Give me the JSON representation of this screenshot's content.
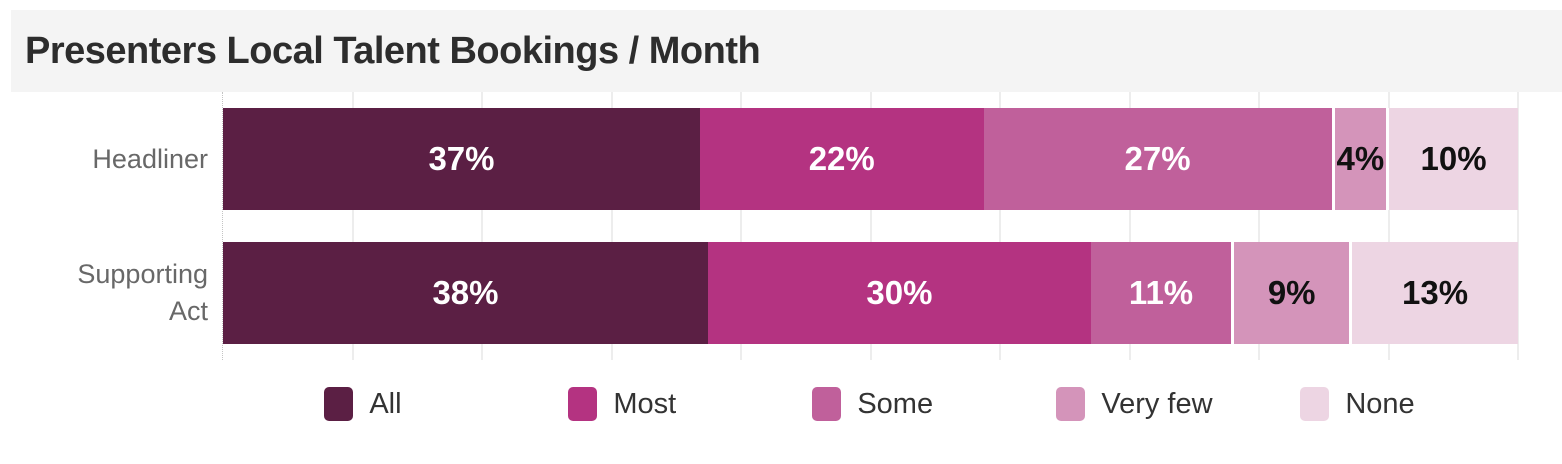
{
  "title": "Presenters Local Talent Bookings / Month",
  "chart_data": {
    "type": "bar",
    "orientation": "horizontal",
    "stacked": true,
    "title": "Presenters Local Talent Bookings / Month",
    "categories": [
      "Headliner",
      "Supporting Act"
    ],
    "category_label_lines": [
      [
        "Headliner"
      ],
      [
        "Supporting",
        "Act"
      ]
    ],
    "series": [
      {
        "name": "All",
        "values": [
          37,
          38
        ],
        "color": "#5b1f44",
        "label_text_color": "#ffffff"
      },
      {
        "name": "Most",
        "values": [
          22,
          30
        ],
        "color": "#b43381",
        "label_text_color": "#ffffff"
      },
      {
        "name": "Some",
        "values": [
          27,
          11
        ],
        "color": "#c0609b",
        "label_text_color": "#ffffff"
      },
      {
        "name": "Very few",
        "values": [
          4,
          9
        ],
        "color": "#d494ba",
        "label_text_color": "#111111"
      },
      {
        "name": "None",
        "values": [
          10,
          13
        ],
        "color": "#edd5e3",
        "label_text_color": "#111111"
      }
    ],
    "data_labels": {
      "Headliner": [
        "37%",
        "22%",
        "27%",
        "4%",
        "10%"
      ],
      "Supporting Act": [
        "38%",
        "30%",
        "11%",
        "9%",
        "13%"
      ]
    },
    "value_format": "percent",
    "xlim": [
      0,
      100
    ],
    "gridlines": {
      "visible": true,
      "interval_percent": 10,
      "color": "#ededed"
    },
    "axis_line": {
      "style": "dotted",
      "color": "#c4c4c4"
    },
    "legend": {
      "position": "bottom",
      "entries": [
        "All",
        "Most",
        "Some",
        "Very few",
        "None"
      ]
    }
  },
  "style": {
    "title_background": "#f4f4f4",
    "title_color": "#2d2d2d",
    "category_label_color": "#686868",
    "legend_text_color": "#333333",
    "background": "#ffffff"
  }
}
